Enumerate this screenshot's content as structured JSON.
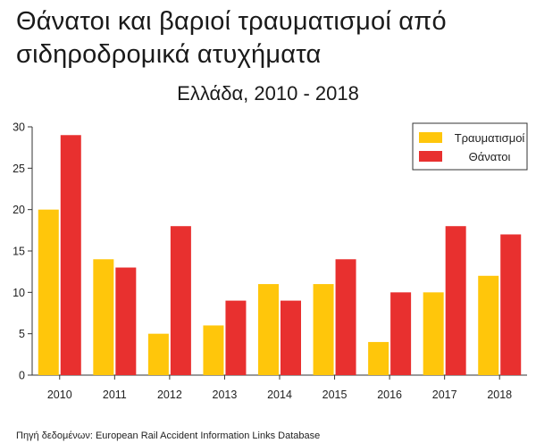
{
  "header": {
    "title_line1": "Θάνατοι και βαριοί τραυματισμοί από",
    "title_line2": "σιδηροδρομικά ατυχήματα"
  },
  "chart_data": {
    "type": "bar",
    "title": "Θάνατοι και βαριοί τραυματισμοί από σιδηροδρομικά ατυχήματα",
    "subtitle": "Ελλάδα, 2010 - 2018",
    "categories": [
      "2010",
      "2011",
      "2012",
      "2013",
      "2014",
      "2015",
      "2016",
      "2017",
      "2018"
    ],
    "series": [
      {
        "name": "Τραυματισμοί",
        "color": "#FFC60B",
        "values": [
          20,
          14,
          5,
          6,
          11,
          11,
          4,
          10,
          12
        ]
      },
      {
        "name": "Θάνατοι",
        "color": "#E8302F",
        "values": [
          29,
          13,
          18,
          9,
          9,
          14,
          10,
          18,
          17
        ]
      }
    ],
    "ylim": [
      0,
      30
    ],
    "yticks": [
      "0",
      "5",
      "10",
      "15",
      "20",
      "25",
      "30"
    ],
    "grid": false,
    "legend": "top-right"
  },
  "footer": {
    "source": "Πηγή δεδομένων: European Rail Accident Information Links Database"
  }
}
